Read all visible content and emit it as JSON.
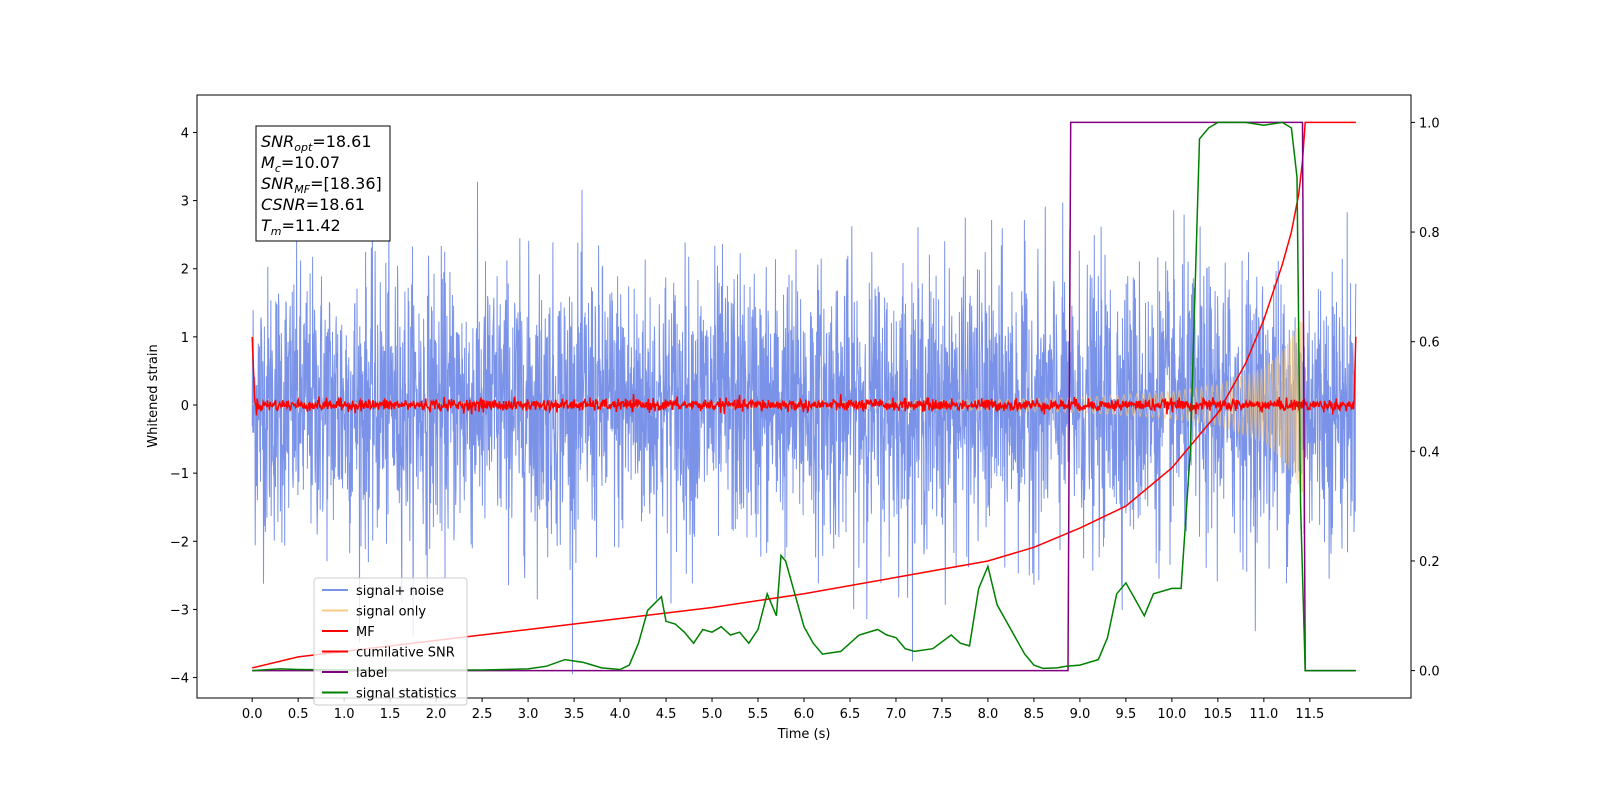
{
  "chart_data": {
    "type": "line",
    "title": "",
    "xlabel": "Time (s)",
    "ylabel": "Whitened strain",
    "y2label": "",
    "xlim": [
      -0.6,
      12.6
    ],
    "ylim": [
      -4.3,
      4.55
    ],
    "y2lim": [
      -0.05,
      1.05
    ],
    "grid": false,
    "legend_position": "lower-left",
    "x_ticks": [
      "0.0",
      "0.5",
      "1.0",
      "1.5",
      "2.0",
      "2.5",
      "3.0",
      "3.5",
      "4.0",
      "4.5",
      "5.0",
      "5.5",
      "6.0",
      "6.5",
      "7.0",
      "7.5",
      "8.0",
      "8.5",
      "9.0",
      "9.5",
      "10.0",
      "10.5",
      "11.0",
      "11.5"
    ],
    "y_ticks": [
      "4",
      "3",
      "2",
      "1",
      "0",
      "−1",
      "−2",
      "−3",
      "−4"
    ],
    "y2_ticks": [
      "1.0",
      "0.8",
      "0.6",
      "0.4",
      "0.2",
      "0.0"
    ],
    "annotation": [
      {
        "sym": "SNR",
        "sub": "opt",
        "val": "=18.61"
      },
      {
        "sym": "M",
        "sub": "c",
        "val": "=10.07"
      },
      {
        "sym": "SNR",
        "sub": "MF",
        "val": "=[18.36]"
      },
      {
        "sym": "CSNR",
        "sub": "",
        "val": "=18.61"
      },
      {
        "sym": "T",
        "sub": "m",
        "val": "=11.42"
      }
    ],
    "series": [
      {
        "name": "signal+ noise",
        "axis": "left",
        "color": "#6b87e6",
        "description_values": {
          "x_start": 0.0,
          "x_end": 12.0,
          "noise_sigma": 1.0,
          "max": 4.2,
          "min": -3.95
        }
      },
      {
        "name": "signal only",
        "axis": "left",
        "color": "#f5c57a",
        "envelope": {
          "x": [
            0.0,
            6.0,
            8.0,
            9.0,
            10.0,
            10.5,
            11.0,
            11.2,
            11.35,
            11.42
          ],
          "amp": [
            0.03,
            0.05,
            0.08,
            0.11,
            0.2,
            0.3,
            0.55,
            0.8,
            1.1,
            1.3
          ]
        }
      },
      {
        "name": "MF",
        "axis": "left",
        "color": "#ff0000",
        "x_start": 0.0,
        "x_end": 12.0,
        "level": 0.0,
        "edge_value": 1.0
      },
      {
        "name": "cumilative SNR",
        "axis": "right",
        "color": "#ff0000",
        "x": [
          0.0,
          0.5,
          1.0,
          2.0,
          3.0,
          4.0,
          5.0,
          6.0,
          7.0,
          8.0,
          8.5,
          9.0,
          9.5,
          10.0,
          10.5,
          10.8,
          11.0,
          11.2,
          11.3,
          11.38,
          11.42,
          11.45,
          12.0
        ],
        "values": [
          0.005,
          0.025,
          0.035,
          0.055,
          0.075,
          0.095,
          0.115,
          0.14,
          0.17,
          0.2,
          0.225,
          0.26,
          0.3,
          0.37,
          0.47,
          0.56,
          0.64,
          0.74,
          0.8,
          0.87,
          0.93,
          1.0,
          1.0
        ]
      },
      {
        "name": "label",
        "axis": "right",
        "color": "#800080",
        "x": [
          0.0,
          8.87,
          8.9,
          11.42,
          11.45,
          12.0
        ],
        "values": [
          0.0,
          0.0,
          1.0,
          1.0,
          0.0,
          0.0
        ]
      },
      {
        "name": "signal statistics",
        "axis": "right",
        "color": "#008000",
        "x": [
          0.0,
          0.3,
          0.5,
          1.0,
          2.0,
          2.5,
          3.0,
          3.2,
          3.4,
          3.6,
          3.8,
          4.0,
          4.1,
          4.2,
          4.3,
          4.45,
          4.5,
          4.6,
          4.7,
          4.8,
          4.9,
          5.0,
          5.1,
          5.2,
          5.3,
          5.4,
          5.5,
          5.6,
          5.7,
          5.75,
          5.8,
          5.9,
          6.0,
          6.1,
          6.2,
          6.4,
          6.6,
          6.8,
          6.9,
          7.0,
          7.1,
          7.2,
          7.4,
          7.6,
          7.7,
          7.8,
          7.9,
          8.0,
          8.1,
          8.2,
          8.3,
          8.4,
          8.5,
          8.6,
          8.75,
          8.85,
          9.0,
          9.2,
          9.3,
          9.4,
          9.5,
          9.6,
          9.7,
          9.8,
          9.9,
          10.0,
          10.1,
          10.2,
          10.3,
          10.4,
          10.5,
          10.6,
          10.8,
          11.0,
          11.2,
          11.3,
          11.36,
          11.4,
          11.45,
          11.5,
          12.0
        ],
        "values": [
          0.0,
          0.003,
          0.002,
          0.001,
          0.001,
          0.001,
          0.003,
          0.008,
          0.02,
          0.015,
          0.005,
          0.002,
          0.01,
          0.05,
          0.11,
          0.135,
          0.09,
          0.085,
          0.07,
          0.05,
          0.075,
          0.07,
          0.08,
          0.065,
          0.07,
          0.05,
          0.075,
          0.14,
          0.1,
          0.21,
          0.2,
          0.14,
          0.08,
          0.05,
          0.03,
          0.035,
          0.065,
          0.075,
          0.065,
          0.06,
          0.04,
          0.035,
          0.04,
          0.065,
          0.05,
          0.045,
          0.15,
          0.19,
          0.12,
          0.09,
          0.06,
          0.03,
          0.01,
          0.004,
          0.005,
          0.008,
          0.01,
          0.02,
          0.06,
          0.14,
          0.16,
          0.13,
          0.1,
          0.14,
          0.145,
          0.15,
          0.15,
          0.4,
          0.97,
          0.99,
          1.0,
          1.0,
          1.0,
          0.995,
          1.0,
          0.99,
          0.9,
          0.3,
          0.0,
          0.0,
          0.0
        ]
      }
    ]
  }
}
